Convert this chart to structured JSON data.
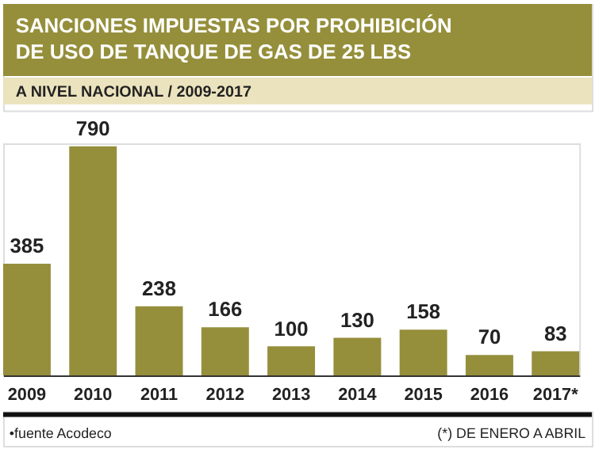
{
  "chart_data": {
    "type": "bar",
    "title": [
      "SANCIONES IMPUESTAS POR PROHIBICIÓN",
      "DE USO DE TANQUE DE GAS DE 25 LBS"
    ],
    "subtitle": "A NIVEL NACIONAL / 2009-2017",
    "categories": [
      "2009",
      "2010",
      "2011",
      "2012",
      "2013",
      "2014",
      "2015",
      "2016",
      "2017*"
    ],
    "values": [
      385,
      790,
      238,
      166,
      100,
      130,
      158,
      70,
      83
    ],
    "color": "#958f3b",
    "data_labels": true,
    "tick_labels": "x",
    "grid": false,
    "annotations": [
      "•fuente Acodeco",
      "(*) DE ENERO A ABRIL"
    ]
  }
}
